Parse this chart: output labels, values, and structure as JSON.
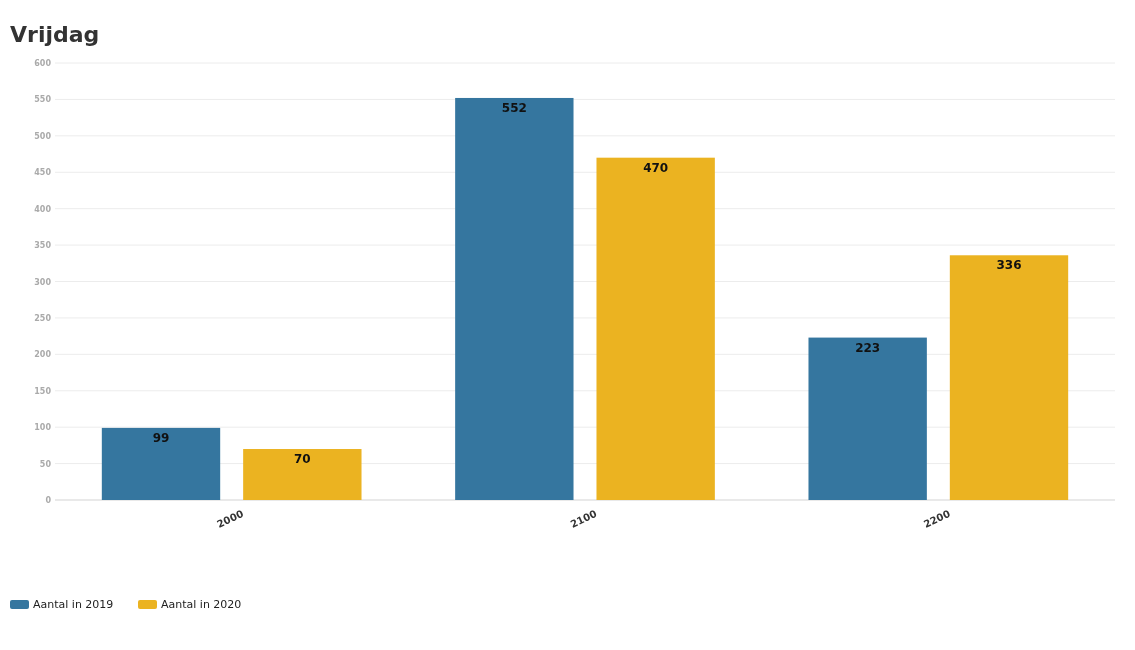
{
  "chart_data": {
    "type": "bar",
    "title": "Vrijdag",
    "categories": [
      "2000",
      "2100",
      "2200"
    ],
    "series": [
      {
        "name": "Aantal in 2019",
        "color": "#35769f",
        "values": [
          99,
          552,
          223
        ]
      },
      {
        "name": "Aantal in 2020",
        "color": "#ebb321",
        "values": [
          70,
          470,
          336
        ]
      }
    ],
    "ylim": [
      0,
      600
    ],
    "yticks": [
      0,
      50,
      100,
      150,
      200,
      250,
      300,
      350,
      400,
      450,
      500,
      550,
      600
    ],
    "grid": "y",
    "data_labels": true,
    "legend": "bottom left"
  }
}
